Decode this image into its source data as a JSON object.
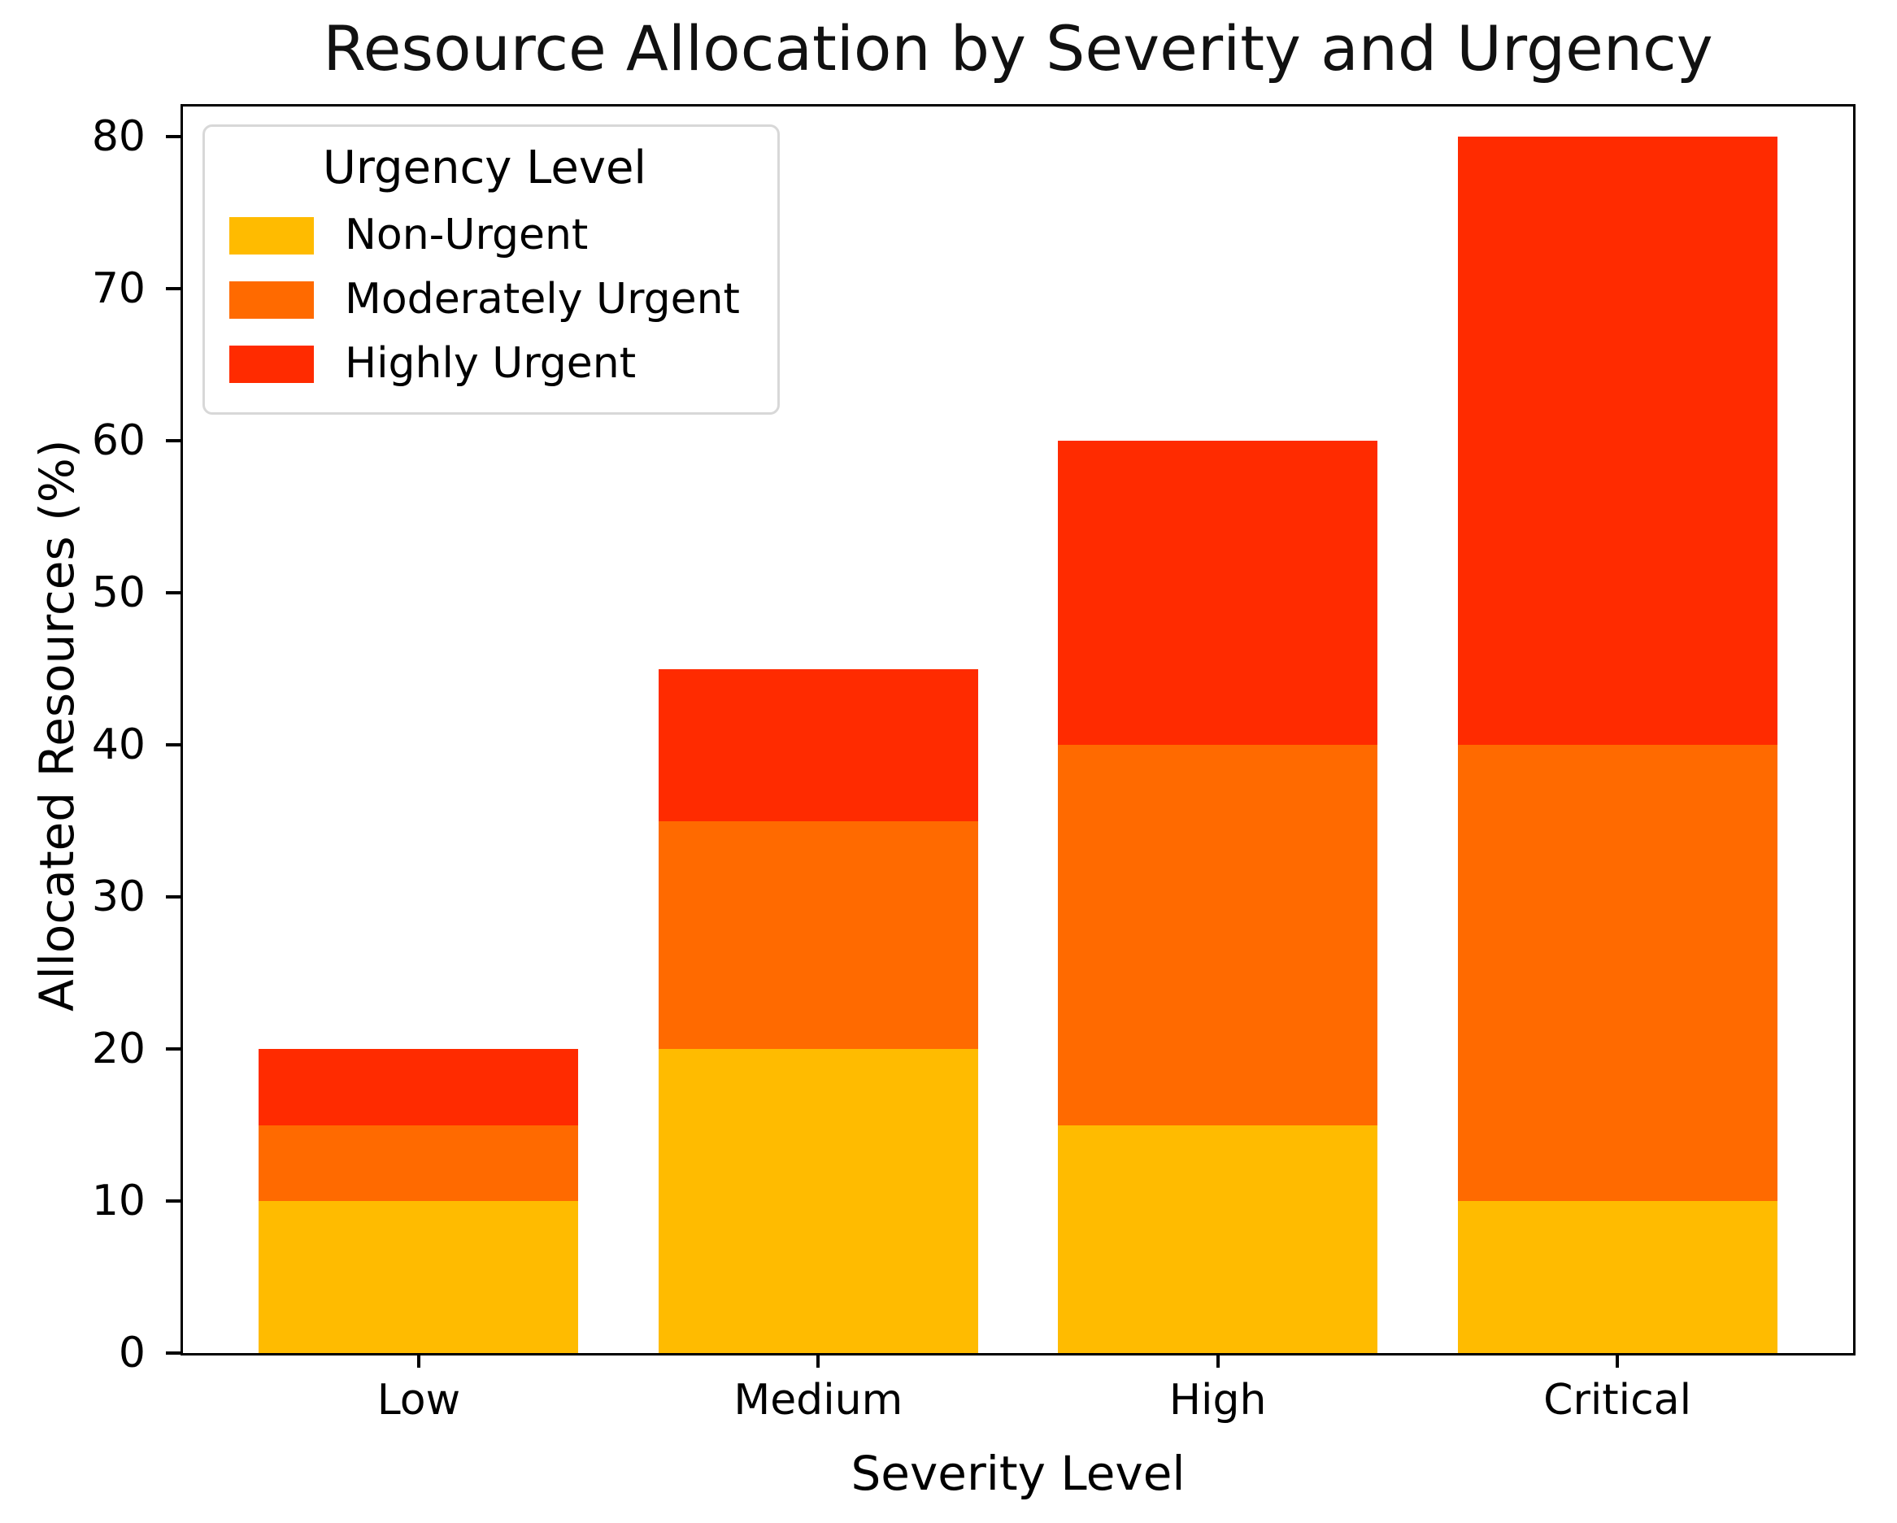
{
  "chart_data": {
    "type": "bar",
    "stacked": true,
    "title": "Resource Allocation by Severity and Urgency",
    "xlabel": "Severity Level",
    "ylabel": "Allocated Resources (%)",
    "categories": [
      "Low",
      "Medium",
      "High",
      "Critical"
    ],
    "series": [
      {
        "name": "Non-Urgent",
        "color": "#FFBB00",
        "values": [
          10,
          20,
          15,
          10
        ]
      },
      {
        "name": "Moderately Urgent",
        "color": "#FF6A00",
        "values": [
          5,
          15,
          25,
          30
        ]
      },
      {
        "name": "Highly Urgent",
        "color": "#FF2B00",
        "values": [
          5,
          10,
          20,
          40
        ]
      }
    ],
    "totals": [
      20,
      45,
      60,
      80
    ],
    "yticks": [
      0,
      10,
      20,
      30,
      40,
      50,
      60,
      70,
      80
    ],
    "ylim": [
      0,
      82
    ],
    "bar_width_fraction": 0.8,
    "grid": false,
    "legend": {
      "title": "Urgency Level",
      "position": "upper left"
    },
    "colors": {
      "spine": "#000000",
      "text": "#000000",
      "background": "#ffffff",
      "legend_border": "#d8d8d8"
    }
  }
}
